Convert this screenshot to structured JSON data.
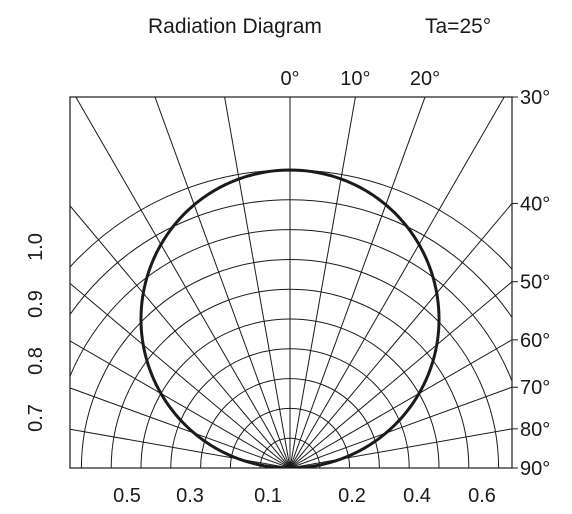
{
  "chart_data": {
    "type": "polar-radiation-pattern",
    "title": "Radiation Diagram",
    "subtitle": "Ta=25°",
    "angle_ticks_top": [
      "0°",
      "10°",
      "20°"
    ],
    "angle_ticks_right": [
      "30°",
      "40°",
      "50°",
      "60°",
      "70°",
      "80°",
      "90°"
    ],
    "angle_values_top": [
      0,
      10,
      20
    ],
    "angle_values_right": [
      30,
      40,
      50,
      60,
      70,
      80,
      90
    ],
    "intensity_ticks_left": [
      "0.7",
      "0.8",
      "0.9",
      "1.0"
    ],
    "intensity_values_left": [
      0.7,
      0.8,
      0.9,
      1.0
    ],
    "bottom_ticks": [
      "0.5",
      "0.3",
      "0.1",
      "0.2",
      "0.4",
      "0.6"
    ],
    "bottom_values": [
      0.5,
      0.3,
      0.1,
      0.2,
      0.4,
      0.6
    ],
    "grid": {
      "radial_step_deg": 10,
      "arc_count": 10
    },
    "series": [
      {
        "pattern": "cosine",
        "relative_intensity": [
          {
            "angle": 0,
            "value": 1.0
          },
          {
            "angle": 10,
            "value": 0.985
          },
          {
            "angle": 20,
            "value": 0.94
          },
          {
            "angle": 30,
            "value": 0.866
          },
          {
            "angle": 40,
            "value": 0.766
          },
          {
            "angle": 50,
            "value": 0.643
          },
          {
            "angle": 60,
            "value": 0.5
          },
          {
            "angle": 70,
            "value": 0.342
          },
          {
            "angle": 80,
            "value": 0.174
          },
          {
            "angle": 90,
            "value": 0.0
          }
        ]
      }
    ]
  }
}
